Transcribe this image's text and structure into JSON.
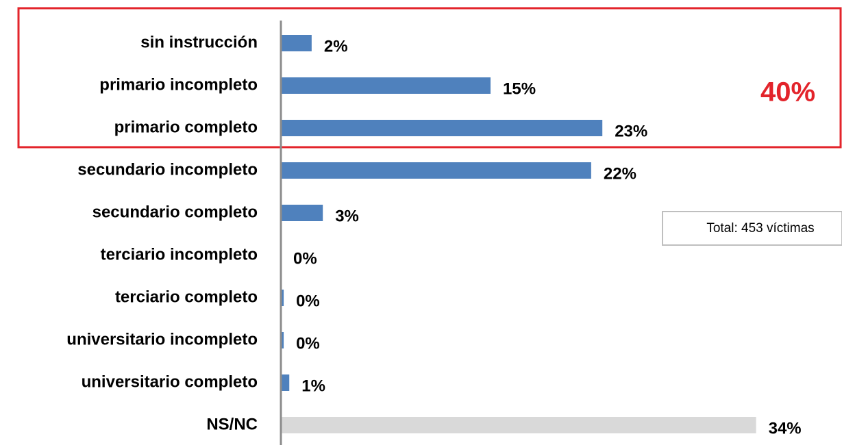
{
  "chart_data": {
    "type": "barh",
    "categories": [
      "sin instrucción",
      "primario incompleto",
      "primario completo",
      "secundario incompleto",
      "secundario completo",
      "terciario incompleto",
      "terciario completo",
      "universitario incompleto",
      "universitario completo",
      "NS/NC"
    ],
    "values": [
      2.2,
      15,
      23,
      22.2,
      3,
      0,
      0.2,
      0.2,
      0.6,
      34
    ],
    "value_labels": [
      "2%",
      "15%",
      "23%",
      "22%",
      "3%",
      "0%",
      "0%",
      "0%",
      "1%",
      "34%"
    ],
    "colors": [
      "#4f81bd",
      "#4f81bd",
      "#4f81bd",
      "#4f81bd",
      "#4f81bd",
      "#4f81bd",
      "#4f81bd",
      "#4f81bd",
      "#4f81bd",
      "#d9d9d9"
    ],
    "xlim": [
      0,
      40
    ],
    "annotations": [
      "40%",
      "Total: 453 víctimas"
    ]
  }
}
